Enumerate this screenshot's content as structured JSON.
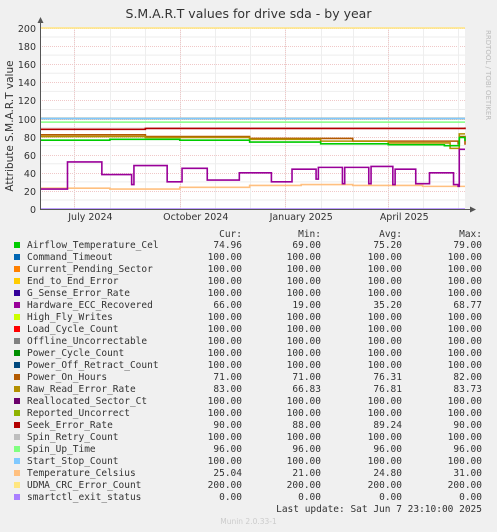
{
  "chart_data": {
    "type": "line",
    "title": "S.M.A.R.T values for drive sda - by year",
    "ylabel": "Attribute S.M.A.R.T value",
    "side_label": "RRDTOOL / TOBI OETIKER",
    "footer": "Munin 2.0.33-1",
    "ylim": [
      0,
      200
    ],
    "yticks": [
      "0",
      "20",
      "40",
      "60",
      "80",
      "100",
      "120",
      "140",
      "160",
      "180",
      "200"
    ],
    "xlim": [
      "2024-06-01",
      "2025-06-07"
    ],
    "xticks": [
      {
        "label": "July 2024",
        "date": "2024-07-15"
      },
      {
        "label": "October 2024",
        "date": "2024-10-15"
      },
      {
        "label": "January 2025",
        "date": "2025-01-15"
      },
      {
        "label": "April 2025",
        "date": "2025-04-15"
      }
    ],
    "grid": true,
    "header": {
      "cur": "Cur:",
      "min": "Min:",
      "avg": "Avg:",
      "max": "Max:"
    },
    "last_update": "Last update:  Sat Jun  7 23:10:00 2025",
    "series": [
      {
        "name": "Airflow_Temperature_Cel",
        "color": "#00cc00",
        "cur": "74.96",
        "min": "69.00",
        "avg": "75.20",
        "max": "79.00",
        "points": [
          [
            "2024-06-01",
            76
          ],
          [
            "2024-08-01",
            77
          ],
          [
            "2024-10-01",
            76
          ],
          [
            "2024-12-01",
            74
          ],
          [
            "2025-02-01",
            72
          ],
          [
            "2025-04-01",
            71
          ],
          [
            "2025-05-20",
            70
          ],
          [
            "2025-06-02",
            79
          ],
          [
            "2025-06-07",
            75
          ]
        ]
      },
      {
        "name": "Command_Timeout",
        "color": "#0066b3",
        "cur": "100.00",
        "min": "100.00",
        "avg": "100.00",
        "max": "100.00",
        "points": [
          [
            "2024-06-01",
            100
          ],
          [
            "2025-06-07",
            100
          ]
        ]
      },
      {
        "name": "Current_Pending_Sector",
        "color": "#ff8000",
        "cur": "100.00",
        "min": "100.00",
        "avg": "100.00",
        "max": "100.00",
        "points": [
          [
            "2024-06-01",
            100
          ],
          [
            "2025-06-07",
            100
          ]
        ]
      },
      {
        "name": "End_to_End_Error",
        "color": "#ffcc00",
        "cur": "100.00",
        "min": "100.00",
        "avg": "100.00",
        "max": "100.00",
        "points": [
          [
            "2024-06-01",
            100
          ],
          [
            "2025-06-07",
            100
          ]
        ]
      },
      {
        "name": "G_Sense_Error_Rate",
        "color": "#330099",
        "cur": "100.00",
        "min": "100.00",
        "avg": "100.00",
        "max": "100.00",
        "points": [
          [
            "2024-06-01",
            100
          ],
          [
            "2025-06-07",
            100
          ]
        ]
      },
      {
        "name": "Hardware_ECC_Recovered",
        "color": "#990099",
        "cur": "66.00",
        "min": "19.00",
        "avg": "35.20",
        "max": "68.77",
        "points": [
          [
            "2024-06-01",
            22
          ],
          [
            "2024-06-20",
            22
          ],
          [
            "2024-06-25",
            52
          ],
          [
            "2024-07-25",
            38
          ],
          [
            "2024-08-20",
            27
          ],
          [
            "2024-08-22",
            48
          ],
          [
            "2024-09-20",
            30
          ],
          [
            "2024-10-01",
            30
          ],
          [
            "2024-10-03",
            45
          ],
          [
            "2024-10-25",
            32
          ],
          [
            "2024-11-20",
            32
          ],
          [
            "2024-11-22",
            40
          ],
          [
            "2024-12-20",
            30
          ],
          [
            "2025-01-05",
            30
          ],
          [
            "2025-01-07",
            44
          ],
          [
            "2025-01-28",
            33
          ],
          [
            "2025-01-30",
            46
          ],
          [
            "2025-02-20",
            28
          ],
          [
            "2025-02-22",
            46
          ],
          [
            "2025-03-15",
            28
          ],
          [
            "2025-03-17",
            47
          ],
          [
            "2025-04-05",
            27
          ],
          [
            "2025-04-07",
            44
          ],
          [
            "2025-04-25",
            28
          ],
          [
            "2025-05-05",
            28
          ],
          [
            "2025-05-07",
            40
          ],
          [
            "2025-05-28",
            27
          ],
          [
            "2025-06-01",
            25
          ],
          [
            "2025-06-02",
            66
          ],
          [
            "2025-06-07",
            66
          ]
        ]
      },
      {
        "name": "High_Fly_Writes",
        "color": "#ccff00",
        "cur": "100.00",
        "min": "100.00",
        "avg": "100.00",
        "max": "100.00",
        "points": [
          [
            "2024-06-01",
            100
          ],
          [
            "2025-06-07",
            100
          ]
        ]
      },
      {
        "name": "Load_Cycle_Count",
        "color": "#ff0000",
        "cur": "100.00",
        "min": "100.00",
        "avg": "100.00",
        "max": "100.00",
        "points": [
          [
            "2024-06-01",
            100
          ],
          [
            "2025-06-07",
            100
          ]
        ]
      },
      {
        "name": "Offline_Uncorrectable",
        "color": "#808080",
        "cur": "100.00",
        "min": "100.00",
        "avg": "100.00",
        "max": "100.00",
        "points": [
          [
            "2024-06-01",
            100
          ],
          [
            "2025-06-07",
            100
          ]
        ]
      },
      {
        "name": "Power_Cycle_Count",
        "color": "#008f00",
        "cur": "100.00",
        "min": "100.00",
        "avg": "100.00",
        "max": "100.00",
        "points": [
          [
            "2024-06-01",
            100
          ],
          [
            "2025-06-07",
            100
          ]
        ]
      },
      {
        "name": "Power_Off_Retract_Count",
        "color": "#00487d",
        "cur": "100.00",
        "min": "100.00",
        "avg": "100.00",
        "max": "100.00",
        "points": [
          [
            "2024-06-01",
            100
          ],
          [
            "2025-06-07",
            100
          ]
        ]
      },
      {
        "name": "Power_On_Hours",
        "color": "#b35a00",
        "cur": "71.00",
        "min": "71.00",
        "avg": "76.31",
        "max": "82.00",
        "points": [
          [
            "2024-06-01",
            82
          ],
          [
            "2024-09-01",
            80
          ],
          [
            "2024-12-01",
            78
          ],
          [
            "2025-03-01",
            75
          ],
          [
            "2025-06-01",
            72
          ],
          [
            "2025-06-02",
            80
          ],
          [
            "2025-06-07",
            71
          ]
        ]
      },
      {
        "name": "Raw_Read_Error_Rate",
        "color": "#b38f00",
        "cur": "83.00",
        "min": "66.83",
        "avg": "76.81",
        "max": "83.73",
        "points": [
          [
            "2024-06-01",
            80
          ],
          [
            "2024-09-01",
            79
          ],
          [
            "2024-12-01",
            77
          ],
          [
            "2025-02-01",
            75
          ],
          [
            "2025-04-01",
            73
          ],
          [
            "2025-05-25",
            67
          ],
          [
            "2025-06-02",
            83
          ],
          [
            "2025-06-07",
            83
          ]
        ]
      },
      {
        "name": "Reallocated_Sector_Ct",
        "color": "#6b006b",
        "cur": "100.00",
        "min": "100.00",
        "avg": "100.00",
        "max": "100.00",
        "points": [
          [
            "2024-06-01",
            100
          ],
          [
            "2025-06-07",
            100
          ]
        ]
      },
      {
        "name": "Reported_Uncorrect",
        "color": "#8fb300",
        "cur": "100.00",
        "min": "100.00",
        "avg": "100.00",
        "max": "100.00",
        "points": [
          [
            "2024-06-01",
            100
          ],
          [
            "2025-06-07",
            100
          ]
        ]
      },
      {
        "name": "Seek_Error_Rate",
        "color": "#b30000",
        "cur": "90.00",
        "min": "88.00",
        "avg": "89.24",
        "max": "90.00",
        "points": [
          [
            "2024-06-01",
            88
          ],
          [
            "2024-09-01",
            89
          ],
          [
            "2025-06-07",
            90
          ]
        ]
      },
      {
        "name": "Spin_Retry_Count",
        "color": "#bebebe",
        "cur": "100.00",
        "min": "100.00",
        "avg": "100.00",
        "max": "100.00",
        "points": [
          [
            "2024-06-01",
            100
          ],
          [
            "2025-06-07",
            100
          ]
        ]
      },
      {
        "name": "Spin_Up_Time",
        "color": "#80ff80",
        "cur": "96.00",
        "min": "96.00",
        "avg": "96.00",
        "max": "96.00",
        "points": [
          [
            "2024-06-01",
            96
          ],
          [
            "2025-06-07",
            96
          ]
        ]
      },
      {
        "name": "Start_Stop_Count",
        "color": "#80c9ff",
        "cur": "100.00",
        "min": "100.00",
        "avg": "100.00",
        "max": "100.00",
        "points": [
          [
            "2024-06-01",
            100
          ],
          [
            "2025-06-07",
            100
          ]
        ]
      },
      {
        "name": "Temperature_Celsius",
        "color": "#ffc080",
        "cur": "25.04",
        "min": "21.00",
        "avg": "24.80",
        "max": "31.00",
        "points": [
          [
            "2024-06-01",
            23
          ],
          [
            "2024-08-01",
            22
          ],
          [
            "2024-10-01",
            24
          ],
          [
            "2024-12-01",
            26
          ],
          [
            "2025-01-15",
            27
          ],
          [
            "2025-03-01",
            26
          ],
          [
            "2025-05-01",
            25
          ],
          [
            "2025-06-07",
            25
          ]
        ]
      },
      {
        "name": "UDMA_CRC_Error_Count",
        "color": "#ffe680",
        "cur": "200.00",
        "min": "200.00",
        "avg": "200.00",
        "max": "200.00",
        "points": [
          [
            "2024-06-01",
            200
          ],
          [
            "2025-06-07",
            200
          ]
        ]
      },
      {
        "name": "smartctl_exit_status",
        "color": "#aa80ff",
        "cur": "0.00",
        "min": "0.00",
        "avg": "0.00",
        "max": "0.00",
        "points": [
          [
            "2024-06-01",
            0
          ],
          [
            "2025-06-07",
            0
          ]
        ]
      }
    ]
  }
}
